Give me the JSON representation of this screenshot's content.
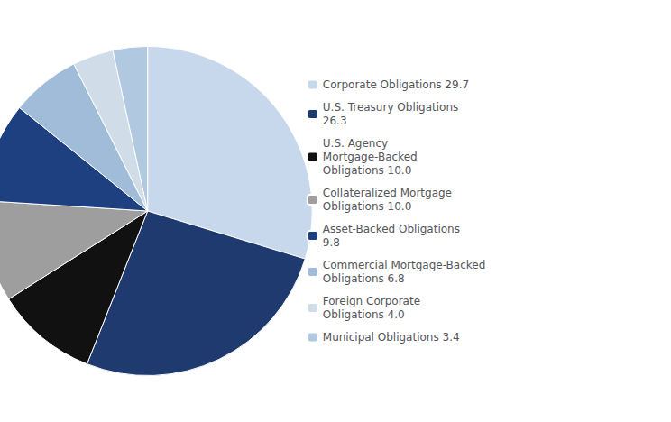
{
  "chart_data": {
    "type": "pie",
    "categories": [
      "Corporate Obligations 29.7",
      "U.S. Treasury Obligations\n26.3",
      "U.S. Agency\nMortgage-Backed\nObligations 10.0",
      "Collateralized Mortgage\nObligations 10.0",
      "Asset-Backed Obligations\n9.8",
      "Commercial Mortgage-Backed\nObligations 6.8",
      "Foreign Corporate\nObligations 4.0",
      "Municipal Obligations 3.4"
    ],
    "values": [
      29.7,
      26.3,
      10.0,
      10.0,
      9.8,
      6.8,
      4.0,
      3.4
    ],
    "colors": [
      "#c8d8ec",
      "#1f3a6e",
      "#111111",
      "#9e9e9e",
      "#1e4080",
      "#a0bcd8",
      "#d0dce8",
      "#b0c8e0"
    ],
    "legend": "right"
  }
}
